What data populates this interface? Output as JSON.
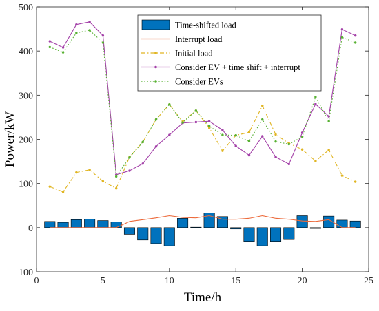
{
  "chart_data": {
    "type": "bar+line",
    "xlabel": "Time/h",
    "ylabel": "Power/kW",
    "xlim": [
      0,
      25
    ],
    "ylim": [
      -100,
      500
    ],
    "x_ticks": [
      0,
      5,
      10,
      15,
      20,
      25
    ],
    "y_ticks": [
      -100,
      0,
      100,
      200,
      300,
      400,
      500
    ],
    "grid": false,
    "legend_position": "top-right",
    "x": [
      1,
      2,
      3,
      4,
      5,
      6,
      7,
      8,
      9,
      10,
      11,
      12,
      13,
      14,
      15,
      16,
      17,
      18,
      19,
      20,
      21,
      22,
      23,
      24
    ],
    "series": [
      {
        "name": "Time-shifted load",
        "kind": "bar",
        "color": "#0072bd",
        "values": [
          14,
          12,
          18,
          19,
          16,
          13,
          -15,
          -28,
          -36,
          -41,
          21,
          1,
          33,
          25,
          -3,
          -31,
          -41,
          -31,
          -27,
          27,
          -2,
          26,
          17,
          15
        ]
      },
      {
        "name": "Interrupt load",
        "kind": "line",
        "color": "#ec6a3b",
        "dash": "solid",
        "marker": "none",
        "values": [
          0,
          0,
          0,
          0,
          0,
          0,
          14,
          18,
          22,
          27,
          23,
          22,
          27,
          19,
          19,
          21,
          27,
          21,
          19,
          15,
          14,
          18,
          0,
          0
        ]
      },
      {
        "name": "Initial load",
        "kind": "line",
        "color": "#e0b522",
        "dash": "dashdot",
        "marker": "dot",
        "values": [
          93,
          81,
          125,
          131,
          105,
          89,
          160,
          194,
          245,
          279,
          240,
          265,
          226,
          174,
          209,
          216,
          276,
          211,
          191,
          177,
          151,
          176,
          118,
          104
        ]
      },
      {
        "name": "Consider EV + time shift + interrupt",
        "kind": "line",
        "color": "#a340a8",
        "dash": "solid",
        "marker": "dot",
        "values": [
          422,
          408,
          460,
          466,
          435,
          120,
          129,
          145,
          184,
          210,
          237,
          239,
          241,
          221,
          185,
          164,
          207,
          160,
          144,
          215,
          280,
          252,
          449,
          435
        ]
      },
      {
        "name": "Consider EVs",
        "kind": "line",
        "color": "#58b133",
        "dash": "dotted",
        "marker": "dot",
        "values": [
          409,
          397,
          441,
          447,
          419,
          116,
          159,
          194,
          245,
          279,
          238,
          265,
          230,
          210,
          209,
          196,
          245,
          195,
          189,
          206,
          296,
          241,
          431,
          419
        ]
      }
    ]
  }
}
